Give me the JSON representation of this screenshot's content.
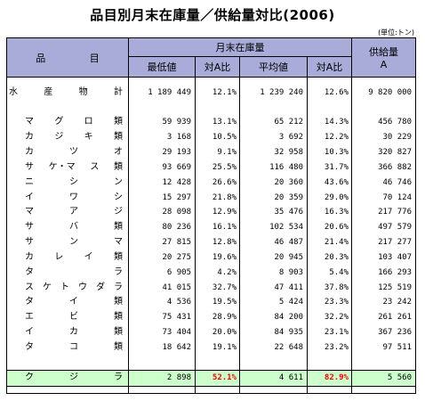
{
  "title": "品目別月末在庫量／供給量対比(2006)",
  "unit": "(単位:トン)",
  "header": {
    "item_label_1": "品",
    "item_label_2": "目",
    "stock_group": "月末在庫量",
    "supply_line1": "供給量",
    "supply_line2": "A",
    "min_label": "最低値",
    "ratio_label_1": "対A比",
    "avg_label": "平均値",
    "ratio_label_2": "対A比"
  },
  "total": {
    "chars": [
      "水",
      "産",
      "物",
      "計"
    ],
    "min": "1 189 449",
    "min_ratio": "12.1%",
    "avg": "1 239 240",
    "avg_ratio": "12.6%",
    "supply": "9 820 000"
  },
  "rows": [
    {
      "chars": [
        "マ",
        "グ",
        "ロ",
        "類"
      ],
      "min": "59 939",
      "min_ratio": "13.1%",
      "avg": "65 212",
      "avg_ratio": "14.3%",
      "supply": "456 780"
    },
    {
      "chars": [
        "カ",
        "ジ",
        "キ",
        "類"
      ],
      "min": "3 168",
      "min_ratio": "10.5%",
      "avg": "3 692",
      "avg_ratio": "12.2%",
      "supply": "30 229"
    },
    {
      "chars": [
        "カ",
        "ツ",
        "オ"
      ],
      "min": "29 193",
      "min_ratio": "9.1%",
      "avg": "32 958",
      "avg_ratio": "10.3%",
      "supply": "320 827"
    },
    {
      "chars": [
        "サ",
        "ケ・マ",
        "ス",
        "類"
      ],
      "min": "93 669",
      "min_ratio": "25.5%",
      "avg": "116 480",
      "avg_ratio": "31.7%",
      "supply": "366 882"
    },
    {
      "chars": [
        "ニ",
        "シ",
        "ン"
      ],
      "min": "12 428",
      "min_ratio": "26.6%",
      "avg": "20 360",
      "avg_ratio": "43.6%",
      "supply": "46 746"
    },
    {
      "chars": [
        "イ",
        "ワ",
        "シ"
      ],
      "min": "15 297",
      "min_ratio": "21.8%",
      "avg": "20 359",
      "avg_ratio": "29.0%",
      "supply": "70 124"
    },
    {
      "chars": [
        "マ",
        "ア",
        "ジ"
      ],
      "min": "28 098",
      "min_ratio": "12.9%",
      "avg": "35 476",
      "avg_ratio": "16.3%",
      "supply": "217 776"
    },
    {
      "chars": [
        "サ",
        "バ",
        "類"
      ],
      "min": "80 236",
      "min_ratio": "16.1%",
      "avg": "102 534",
      "avg_ratio": "20.6%",
      "supply": "497 579"
    },
    {
      "chars": [
        "サ",
        "ン",
        "マ"
      ],
      "min": "27 815",
      "min_ratio": "12.8%",
      "avg": "46 487",
      "avg_ratio": "21.4%",
      "supply": "217 277"
    },
    {
      "chars": [
        "カ",
        "レ",
        "イ",
        "類"
      ],
      "min": "20 275",
      "min_ratio": "19.6%",
      "avg": "20 945",
      "avg_ratio": "20.3%",
      "supply": "103 407"
    },
    {
      "chars": [
        "タ",
        "ラ"
      ],
      "min": "6 905",
      "min_ratio": "4.2%",
      "avg": "8 903",
      "avg_ratio": "5.4%",
      "supply": "166 293"
    },
    {
      "chars": [
        "ス",
        "ケ",
        "ト",
        "ウ",
        "ダ",
        "ラ"
      ],
      "min": "41 015",
      "min_ratio": "32.7%",
      "avg": "47 411",
      "avg_ratio": "37.8%",
      "supply": "125 519"
    },
    {
      "chars": [
        "タ",
        "イ",
        "類"
      ],
      "min": "4 536",
      "min_ratio": "19.5%",
      "avg": "5 424",
      "avg_ratio": "23.3%",
      "supply": "23 242"
    },
    {
      "chars": [
        "エ",
        "ビ",
        "類"
      ],
      "min": "75 431",
      "min_ratio": "28.9%",
      "avg": "84 200",
      "avg_ratio": "32.2%",
      "supply": "261 261"
    },
    {
      "chars": [
        "イ",
        "カ",
        "類"
      ],
      "min": "73 404",
      "min_ratio": "20.0%",
      "avg": "84 935",
      "avg_ratio": "23.1%",
      "supply": "367 236"
    },
    {
      "chars": [
        "タ",
        "コ",
        "類"
      ],
      "min": "18 642",
      "min_ratio": "19.1%",
      "avg": "22 648",
      "avg_ratio": "23.2%",
      "supply": "97 511"
    }
  ],
  "highlight": {
    "chars": [
      "ク",
      "ジ",
      "ラ"
    ],
    "min": "2 898",
    "min_ratio": "52.1%",
    "avg": "4 611",
    "avg_ratio": "82.9%",
    "supply": "5 560"
  }
}
